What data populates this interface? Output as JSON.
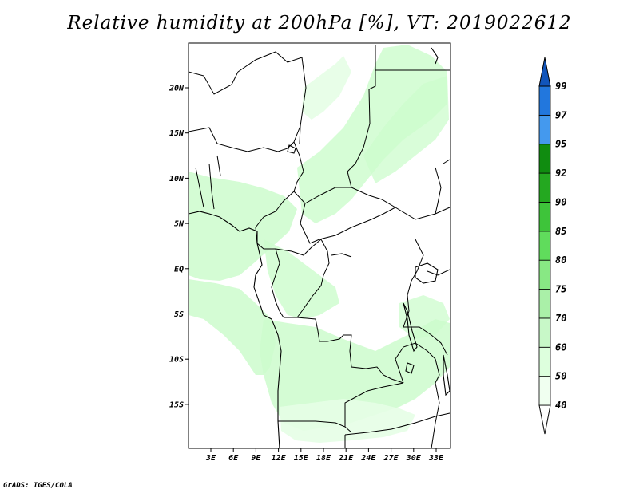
{
  "title": "Relative humidity at 200hPa [%], VT: 2019022612",
  "credit": "GrADS: IGES/COLA",
  "map": {
    "lon_labels": [
      "3E",
      "6E",
      "9E",
      "12E",
      "15E",
      "18E",
      "21E",
      "24E",
      "27E",
      "30E",
      "33E"
    ],
    "lat_labels": [
      "20N",
      "15N",
      "10N",
      "5N",
      "EQ",
      "5S",
      "10S",
      "15S"
    ]
  },
  "colorbar": {
    "labels": [
      "40",
      "50",
      "60",
      "70",
      "75",
      "80",
      "85",
      "90",
      "92",
      "95",
      "97",
      "99"
    ],
    "colors": [
      "#f0fff0",
      "#ddffdd",
      "#c8f8c8",
      "#aaf0a8",
      "#88e884",
      "#60dc5c",
      "#3ec43a",
      "#24a820",
      "#108c10",
      "#4499ee",
      "#2277dd",
      "#1155bb"
    ],
    "under_color": "#ffffff",
    "over_color": "#1155bb"
  },
  "colors": {
    "light_green": "#ccfccc",
    "pale_green": "#e6fee6",
    "border": "#000000"
  }
}
